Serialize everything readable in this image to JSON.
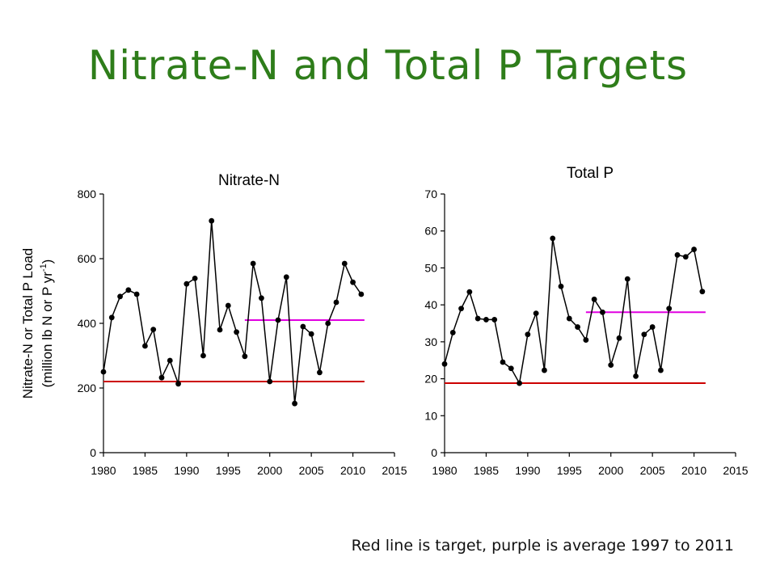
{
  "slide": {
    "title": "Nitrate-N and Total P Targets",
    "caption": "Red line is target, purple is average 1997 to 2011"
  },
  "shared_ylabel": {
    "line1": "Nitrate-N or Total P Load",
    "line2_prefix": "(million lb N or P yr",
    "line2_sup": "-1",
    "line2_suffix": ")"
  },
  "colors": {
    "data": "#000000",
    "target": "#cc0000",
    "average": "#e000e0",
    "title": "#2e7d1a"
  },
  "chart_data": [
    {
      "type": "line",
      "title": "Nitrate-N",
      "xlim": [
        1980,
        2015
      ],
      "ylim": [
        0,
        800
      ],
      "xticks": [
        1980,
        1985,
        1990,
        1995,
        2000,
        2005,
        2010,
        2015
      ],
      "yticks": [
        0,
        200,
        400,
        600,
        800
      ],
      "x": [
        1980,
        1981,
        1982,
        1983,
        1984,
        1985,
        1986,
        1987,
        1988,
        1989,
        1990,
        1991,
        1992,
        1993,
        1994,
        1995,
        1996,
        1997,
        1998,
        1999,
        2000,
        2001,
        2002,
        2003,
        2004,
        2005,
        2006,
        2007,
        2008,
        2009,
        2010,
        2011
      ],
      "y": [
        250,
        418,
        483,
        503,
        490,
        330,
        381,
        232,
        285,
        213,
        522,
        539,
        300,
        717,
        380,
        455,
        373,
        298,
        585,
        478,
        220,
        410,
        543,
        152,
        390,
        367,
        248,
        400,
        465,
        585,
        527,
        490
      ],
      "target": {
        "y": 220,
        "x": [
          1980,
          2011
        ]
      },
      "average": {
        "y": 410,
        "x": [
          1997,
          2011
        ]
      }
    },
    {
      "type": "line",
      "title": "Total P",
      "xlim": [
        1980,
        2015
      ],
      "ylim": [
        0,
        70
      ],
      "xticks": [
        1980,
        1985,
        1990,
        1995,
        2000,
        2005,
        2010,
        2015
      ],
      "yticks": [
        0,
        10,
        20,
        30,
        40,
        50,
        60,
        70
      ],
      "x": [
        1980,
        1981,
        1982,
        1983,
        1984,
        1985,
        1986,
        1987,
        1988,
        1989,
        1990,
        1991,
        1992,
        1993,
        1994,
        1995,
        1996,
        1997,
        1998,
        1999,
        2000,
        2001,
        2002,
        2003,
        2004,
        2005,
        2006,
        2007,
        2008,
        2009,
        2010,
        2011
      ],
      "y": [
        24,
        32.5,
        39,
        43.5,
        36.3,
        36,
        36,
        24.5,
        22.8,
        18.8,
        32,
        37.7,
        22.3,
        58,
        45,
        36.3,
        34,
        30.5,
        41.5,
        38,
        23.7,
        31,
        47,
        20.7,
        32,
        34,
        22.3,
        39,
        53.5,
        53,
        55,
        43.6
      ],
      "target": {
        "y": 18.8,
        "x": [
          1980,
          2011
        ]
      },
      "average": {
        "y": 38,
        "x": [
          1997,
          2011
        ]
      }
    }
  ]
}
